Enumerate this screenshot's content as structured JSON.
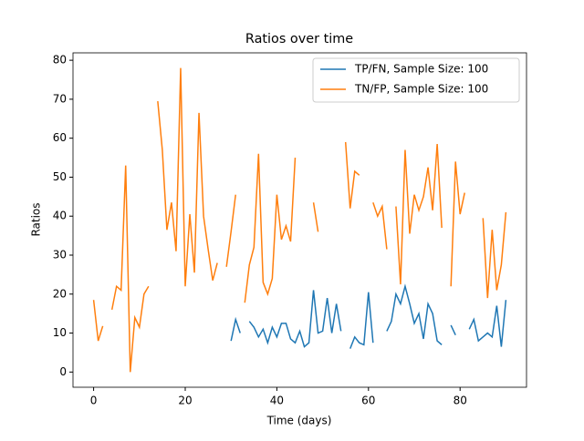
{
  "chart_data": {
    "type": "line",
    "title": "Ratios over time",
    "xlabel": "Time (days)",
    "ylabel": "Ratios",
    "x": [
      0,
      1,
      2,
      3,
      4,
      5,
      6,
      7,
      8,
      9,
      10,
      11,
      12,
      13,
      14,
      15,
      16,
      17,
      18,
      19,
      20,
      21,
      22,
      23,
      24,
      25,
      26,
      27,
      28,
      29,
      30,
      31,
      32,
      33,
      34,
      35,
      36,
      37,
      38,
      39,
      40,
      41,
      42,
      43,
      44,
      45,
      46,
      47,
      48,
      49,
      50,
      51,
      52,
      53,
      54,
      55,
      56,
      57,
      58,
      59,
      60,
      61,
      62,
      63,
      64,
      65,
      66,
      67,
      68,
      69,
      70,
      71,
      72,
      73,
      74,
      75,
      76,
      77,
      78,
      79,
      80,
      81,
      82,
      83,
      84,
      85,
      86,
      87,
      88,
      89,
      90
    ],
    "series": [
      {
        "name": "TP/FN, Sample Size: 100",
        "color": "#1f77b4",
        "values": [
          null,
          null,
          null,
          null,
          null,
          null,
          null,
          null,
          null,
          null,
          null,
          null,
          null,
          null,
          null,
          null,
          null,
          null,
          null,
          null,
          null,
          null,
          null,
          null,
          null,
          null,
          null,
          null,
          null,
          null,
          8,
          13.5,
          10,
          null,
          13,
          11.5,
          9,
          11,
          7.5,
          11.5,
          9,
          12.5,
          12.5,
          8.5,
          7.5,
          10.5,
          6.5,
          7.5,
          21,
          10,
          10.5,
          19,
          10,
          17.5,
          10.5,
          null,
          6,
          9,
          7.5,
          7,
          20.5,
          7.5,
          null,
          null,
          10.5,
          13,
          20,
          17.5,
          22,
          17.5,
          12.5,
          15,
          8.5,
          17.5,
          15,
          8,
          7,
          null,
          12,
          9.5,
          null,
          null,
          11,
          13.5,
          8,
          9,
          10,
          9,
          17,
          6.5,
          18.5
        ]
      },
      {
        "name": "TN/FP, Sample Size: 100",
        "color": "#ff7f0e",
        "values": [
          18.5,
          8,
          11.8,
          null,
          16,
          22,
          21,
          53,
          0,
          14,
          11.5,
          20,
          22,
          null,
          69.5,
          57,
          36.5,
          43.5,
          31,
          78,
          22,
          40.5,
          25.5,
          66.5,
          40,
          31.5,
          23.5,
          28,
          null,
          27,
          36,
          45.5,
          null,
          17.8,
          27.5,
          32,
          56,
          23,
          20,
          24,
          45.5,
          34,
          37.5,
          33.5,
          55,
          null,
          null,
          null,
          43.5,
          36,
          null,
          null,
          null,
          null,
          null,
          59,
          42,
          51.5,
          50.5,
          null,
          null,
          43.5,
          40,
          42.5,
          31.5,
          null,
          42.5,
          22.5,
          57,
          35.5,
          45.5,
          41.5,
          45,
          52.5,
          41.5,
          58.5,
          37,
          null,
          22,
          54,
          40.5,
          46,
          null,
          null,
          null,
          39.5,
          19,
          36.5,
          21,
          27.5,
          41
        ]
      }
    ],
    "xlim": [
      -4.5,
      94.5
    ],
    "xticks": [
      0,
      20,
      40,
      60,
      80
    ],
    "ylim": [
      -3.9,
      81.9
    ],
    "yticks": [
      0,
      10,
      20,
      30,
      40,
      50,
      60,
      70,
      80
    ],
    "legend": "upper right"
  }
}
